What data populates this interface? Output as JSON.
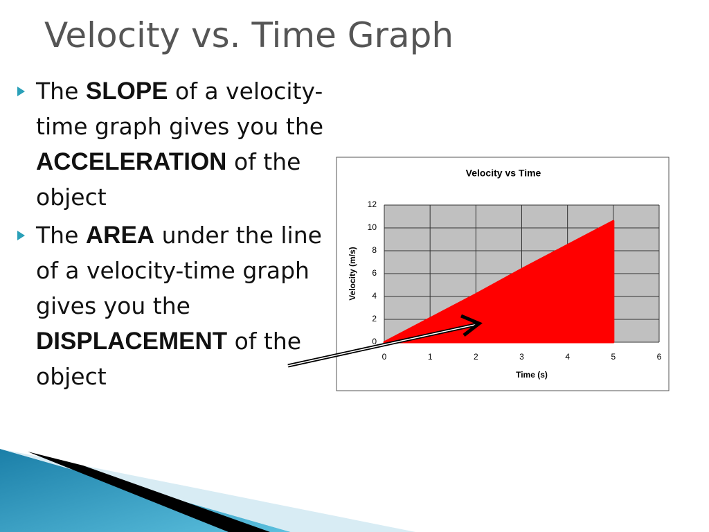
{
  "slide": {
    "title": "Velocity vs. Time Graph",
    "bullets": [
      [
        {
          "text": "The"
        },
        {
          "text": "SLOPE",
          "bold": true
        },
        {
          "text": "of a velocity-time graph gives you the"
        },
        {
          "text": "ACCELERATION",
          "bold": true
        },
        {
          "text": "of the object"
        }
      ],
      [
        {
          "text": "The"
        },
        {
          "text": "AREA",
          "bold": true
        },
        {
          "text": "under the line of a velocity-time graph gives you the"
        },
        {
          "text": "DISPLACEMENT",
          "bold": true
        },
        {
          "text": "of the object"
        }
      ]
    ]
  },
  "chart_data": {
    "type": "area",
    "title": "Velocity vs Time",
    "x_label": "Time (s)",
    "y_label": "Velocity (m/s)",
    "x": [
      0,
      1,
      2,
      3,
      4,
      5
    ],
    "values": [
      0,
      2.1,
      4.2,
      6.4,
      8.5,
      10.6
    ],
    "color": "#ff0000",
    "xlim": [
      0,
      6
    ],
    "ylim": [
      0,
      12
    ],
    "xticks": [
      0,
      1,
      2,
      3,
      4,
      5,
      6
    ],
    "yticks": [
      0,
      2,
      4,
      6,
      8,
      10,
      12
    ],
    "grid": true,
    "plot_background": "#c0c0c0"
  }
}
